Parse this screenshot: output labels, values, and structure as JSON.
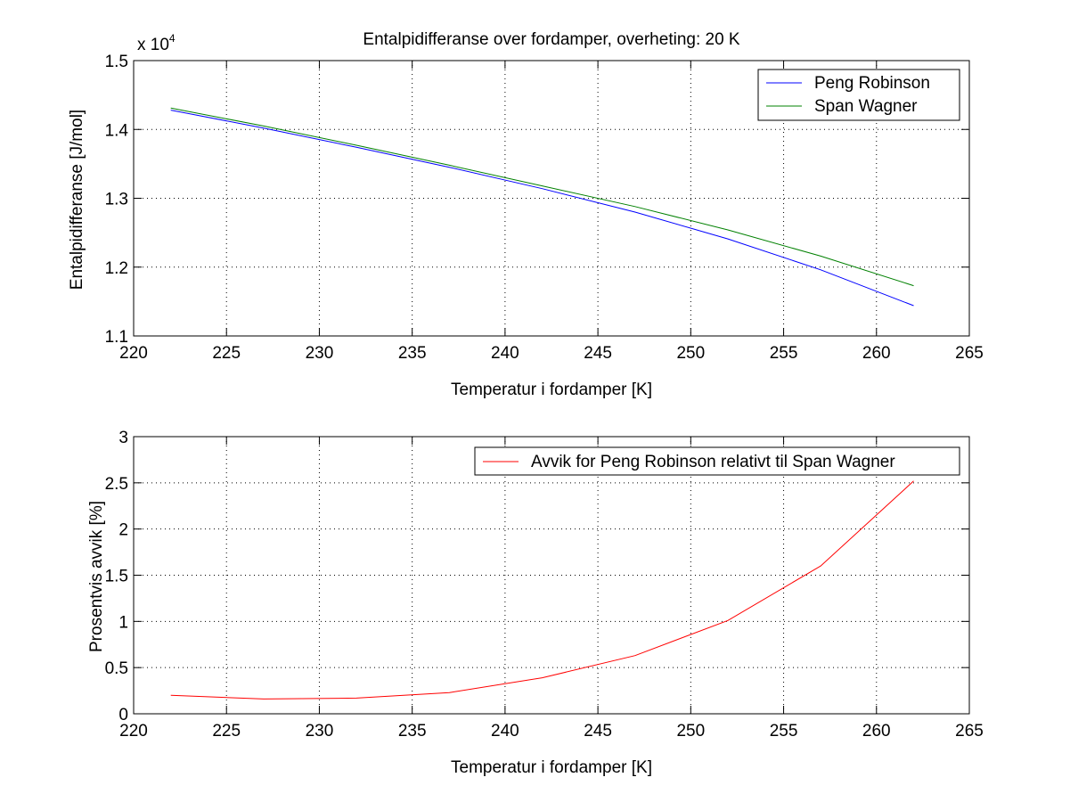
{
  "chart_data": [
    {
      "type": "line",
      "title": "Entalpidifferanse over fordamper, overheting: 20 K",
      "xlabel": "Temperatur i fordamper [K]",
      "ylabel": "Entalpidifferanse [J/mol]",
      "y_multiplier_label": "x 10",
      "y_multiplier_exponent": "4",
      "xlim": [
        220,
        265
      ],
      "ylim": [
        1.1,
        1.5
      ],
      "x_ticks": [
        220,
        225,
        230,
        235,
        240,
        245,
        250,
        255,
        260,
        265
      ],
      "x_tick_labels": [
        "220",
        "225",
        "230",
        "235",
        "240",
        "245",
        "250",
        "255",
        "260",
        "265"
      ],
      "y_ticks": [
        1.1,
        1.2,
        1.3,
        1.4,
        1.5
      ],
      "y_tick_labels": [
        "1.1",
        "1.2",
        "1.3",
        "1.4",
        "1.5"
      ],
      "grid": true,
      "legend_position": "top-right",
      "x": [
        222,
        227,
        232,
        237,
        242,
        247,
        252,
        257,
        262
      ],
      "series": [
        {
          "name": "Peng Robinson",
          "color": "#0000ff",
          "values": [
            1.428,
            1.402,
            1.374,
            1.345,
            1.314,
            1.28,
            1.241,
            1.196,
            1.144
          ]
        },
        {
          "name": "Span Wagner",
          "color": "#008000",
          "values": [
            1.431,
            1.405,
            1.377,
            1.348,
            1.318,
            1.288,
            1.254,
            1.216,
            1.173
          ]
        }
      ]
    },
    {
      "type": "line",
      "title": "",
      "xlabel": "Temperatur i fordamper [K]",
      "ylabel": "Prosentvis avvik [%]",
      "xlim": [
        220,
        265
      ],
      "ylim": [
        0,
        3
      ],
      "x_ticks": [
        220,
        225,
        230,
        235,
        240,
        245,
        250,
        255,
        260,
        265
      ],
      "x_tick_labels": [
        "220",
        "225",
        "230",
        "235",
        "240",
        "245",
        "250",
        "255",
        "260",
        "265"
      ],
      "y_ticks": [
        0,
        0.5,
        1,
        1.5,
        2,
        2.5,
        3
      ],
      "y_tick_labels": [
        "0",
        "0.5",
        "1",
        "1.5",
        "2",
        "2.5",
        "3"
      ],
      "grid": true,
      "legend_position": "top-right",
      "x": [
        222,
        227,
        232,
        237,
        242,
        247,
        252,
        257,
        262
      ],
      "series": [
        {
          "name": "Avvik for Peng Robinson relativt til Span Wagner",
          "color": "#ff0000",
          "values": [
            0.2,
            0.16,
            0.17,
            0.23,
            0.39,
            0.63,
            1.01,
            1.6,
            2.52
          ]
        }
      ]
    }
  ]
}
